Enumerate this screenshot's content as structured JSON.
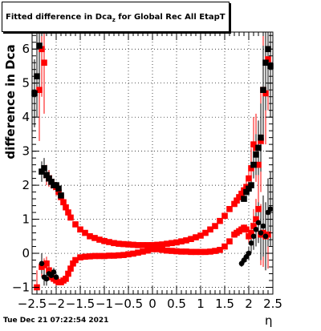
{
  "title": {
    "main": "Fitted difference in Dca",
    "sub": "z",
    "rest": " for Global Rec All EtapT"
  },
  "datestamp": "Tue Dec 21 07:22:54 2021",
  "colors": {
    "series_red": "#ff0000",
    "series_black": "#000000",
    "grid": "#000000"
  },
  "chart_data": {
    "type": "scatter",
    "title": "Fitted difference in Dca_z for Global Rec All EtapT",
    "xlabel": "η",
    "ylabel": "difference in Dca",
    "xlim": [
      -2.5,
      2.5
    ],
    "ylim": [
      -1.2,
      6.5
    ],
    "grid": "dotted",
    "x_ticks": [
      -2.5,
      -2,
      -1.5,
      -1,
      -0.5,
      0,
      0.5,
      1,
      1.5,
      2,
      2.5
    ],
    "x_tick_labels": [
      "−2.5",
      "−2",
      "−1.5",
      "−1",
      "−0.5",
      "0",
      "0.5",
      "1",
      "1.5",
      "2",
      "2.5"
    ],
    "y_ticks": [
      -1,
      0,
      1,
      2,
      3,
      4,
      5,
      6
    ],
    "y_tick_labels": [
      "−1",
      "0",
      "1",
      "2",
      "3",
      "4",
      "5",
      "6"
    ],
    "series": [
      {
        "color": "#ff0000",
        "marker": "square",
        "x": [
          -2.4,
          -2.35,
          -2.3,
          -2.25,
          -2.2,
          -2.15,
          -2.1,
          -2.05,
          -2.0,
          -1.95,
          -1.9,
          -1.85,
          -1.8,
          -1.75,
          -1.7,
          -1.6,
          -1.5,
          -1.4,
          -1.3,
          -1.2,
          -1.1,
          -1.0,
          -0.9,
          -0.8,
          -0.7,
          -0.6,
          -0.5,
          -0.4,
          -0.3,
          -0.2,
          -0.1,
          0.0,
          0.1,
          0.2,
          0.3,
          0.4,
          0.5,
          0.6,
          0.7,
          0.8,
          0.9,
          1.0,
          1.1,
          1.2,
          1.3,
          1.4,
          1.5,
          1.6,
          1.7,
          1.75,
          1.8,
          1.85,
          1.9,
          1.95,
          2.0,
          2.05,
          2.1,
          2.15,
          2.2,
          2.25,
          2.3,
          2.35,
          2.4
        ],
        "y": [
          -1.0,
          4.8,
          6.0,
          5.6,
          2.3,
          2.2,
          2.1,
          2.0,
          1.95,
          1.8,
          1.65,
          1.5,
          1.35,
          1.2,
          1.05,
          0.85,
          0.7,
          0.6,
          0.5,
          0.45,
          0.4,
          0.36,
          0.33,
          0.3,
          0.28,
          0.27,
          0.26,
          0.25,
          0.24,
          0.24,
          0.24,
          0.24,
          0.25,
          0.26,
          0.28,
          0.3,
          0.32,
          0.35,
          0.38,
          0.42,
          0.47,
          0.52,
          0.6,
          0.7,
          0.8,
          0.95,
          1.1,
          1.3,
          1.45,
          1.55,
          1.65,
          1.75,
          1.85,
          1.95,
          2.2,
          2.5,
          3.2,
          3.1,
          2.6,
          3.3,
          4.8,
          4.7,
          5.7
        ],
        "yerr": [
          0.5,
          1.5,
          1.4,
          1.5,
          0.3,
          0.25,
          0.2,
          0.15,
          0.12,
          0.1,
          0.08,
          0.07,
          0.06,
          0.05,
          0.05,
          0.04,
          0.03,
          0.03,
          0.03,
          0.02,
          0.02,
          0.02,
          0.02,
          0.02,
          0.02,
          0.02,
          0.02,
          0.02,
          0.02,
          0.02,
          0.02,
          0.02,
          0.02,
          0.02,
          0.02,
          0.02,
          0.02,
          0.02,
          0.02,
          0.02,
          0.02,
          0.03,
          0.03,
          0.03,
          0.04,
          0.04,
          0.05,
          0.06,
          0.07,
          0.08,
          0.1,
          0.12,
          0.15,
          0.2,
          0.3,
          0.6,
          0.8,
          1.0,
          1.1,
          1.5,
          1.6,
          1.5,
          1.5
        ]
      },
      {
        "color": "#ff0000",
        "marker": "square",
        "x": [
          -2.3,
          -2.25,
          -2.2,
          -2.15,
          -2.1,
          -2.05,
          -2.0,
          -1.95,
          -1.9,
          -1.85,
          -1.8,
          -1.75,
          -1.7,
          -1.65,
          -1.6,
          -1.5,
          -1.4,
          -1.3,
          -1.2,
          -1.1,
          -1.0,
          -0.9,
          -0.8,
          -0.7,
          -0.6,
          -0.5,
          -0.4,
          -0.3,
          -0.2,
          -0.1,
          0.0,
          0.1,
          0.2,
          0.3,
          0.4,
          0.5,
          0.6,
          0.7,
          0.8,
          0.9,
          1.0,
          1.1,
          1.2,
          1.3,
          1.4,
          1.5,
          1.6,
          1.7,
          1.75,
          1.8,
          1.85,
          1.9,
          1.95,
          2.0,
          2.05,
          2.1,
          2.15,
          2.2,
          2.25,
          2.3,
          2.35,
          2.4
        ],
        "y": [
          -0.4,
          -0.35,
          -0.3,
          -0.5,
          -0.7,
          -0.75,
          -0.8,
          -0.85,
          -0.85,
          -0.8,
          -0.75,
          -0.6,
          -0.45,
          -0.3,
          -0.2,
          -0.12,
          -0.1,
          -0.09,
          -0.08,
          -0.08,
          -0.08,
          -0.07,
          -0.07,
          -0.06,
          -0.05,
          -0.03,
          -0.01,
          0.02,
          0.05,
          0.08,
          0.12,
          0.12,
          0.1,
          0.08,
          0.07,
          0.06,
          0.05,
          0.05,
          0.04,
          0.04,
          0.04,
          0.04,
          0.05,
          0.07,
          0.1,
          0.2,
          0.35,
          0.55,
          0.6,
          0.65,
          0.7,
          0.75,
          0.7,
          0.5,
          0.6,
          0.8,
          1.0,
          1.3,
          0.55,
          0.6,
          0.5,
          0.55
        ],
        "yerr": [
          0.3,
          0.2,
          0.2,
          0.15,
          0.1,
          0.08,
          0.07,
          0.06,
          0.05,
          0.05,
          0.04,
          0.04,
          0.03,
          0.03,
          0.02,
          0.02,
          0.02,
          0.02,
          0.02,
          0.02,
          0.02,
          0.02,
          0.02,
          0.02,
          0.02,
          0.02,
          0.02,
          0.02,
          0.02,
          0.02,
          0.02,
          0.02,
          0.02,
          0.02,
          0.02,
          0.02,
          0.02,
          0.02,
          0.02,
          0.02,
          0.02,
          0.02,
          0.02,
          0.02,
          0.02,
          0.02,
          0.03,
          0.04,
          0.05,
          0.06,
          0.08,
          0.1,
          0.15,
          0.2,
          0.3,
          0.5,
          0.6,
          0.8,
          0.9,
          1.0,
          1.0,
          1.0
        ]
      },
      {
        "color": "#000000",
        "marker": "square",
        "x": [
          -2.45,
          -2.4,
          -2.35,
          -2.3,
          -2.25,
          -2.2,
          -2.15,
          -2.1,
          -2.05,
          -2.0,
          -1.95,
          -1.9,
          1.9,
          1.95,
          2.0,
          2.05,
          2.1,
          2.15,
          2.2,
          2.25,
          2.3,
          2.35,
          2.4,
          2.45
        ],
        "y": [
          4.7,
          5.2,
          6.1,
          2.4,
          2.5,
          2.3,
          2.2,
          2.1,
          2.0,
          2.0,
          1.9,
          1.7,
          1.6,
          1.8,
          1.9,
          2.0,
          2.6,
          2.9,
          3.1,
          3.4,
          4.8,
          5.6,
          6.0,
          5.5
        ],
        "yerr": [
          1.0,
          1.2,
          1.4,
          0.3,
          0.3,
          0.2,
          0.15,
          0.12,
          0.1,
          0.1,
          0.08,
          0.07,
          0.07,
          0.08,
          0.1,
          0.12,
          0.4,
          0.6,
          0.8,
          1.0,
          1.3,
          1.4,
          1.4,
          1.5
        ]
      },
      {
        "color": "#000000",
        "marker": "circle",
        "x": [
          -2.3,
          -2.25,
          -2.2,
          -2.15,
          -2.1,
          -2.05,
          -2.0,
          1.85,
          1.9,
          1.95,
          2.0,
          2.05,
          2.1,
          2.15,
          2.2,
          2.25,
          2.3,
          2.35,
          2.4,
          2.45
        ],
        "y": [
          -0.3,
          -0.7,
          -0.75,
          -0.6,
          -0.65,
          -0.55,
          -0.7,
          -0.3,
          -0.2,
          -0.1,
          0.0,
          0.3,
          0.5,
          0.7,
          0.9,
          0.6,
          0.8,
          0.5,
          1.2,
          1.3
        ],
        "yerr": [
          0.3,
          0.25,
          0.2,
          0.2,
          0.15,
          0.12,
          0.1,
          0.1,
          0.12,
          0.15,
          0.2,
          0.3,
          0.4,
          0.5,
          0.6,
          0.8,
          0.9,
          1.0,
          1.0,
          1.1
        ]
      }
    ]
  }
}
